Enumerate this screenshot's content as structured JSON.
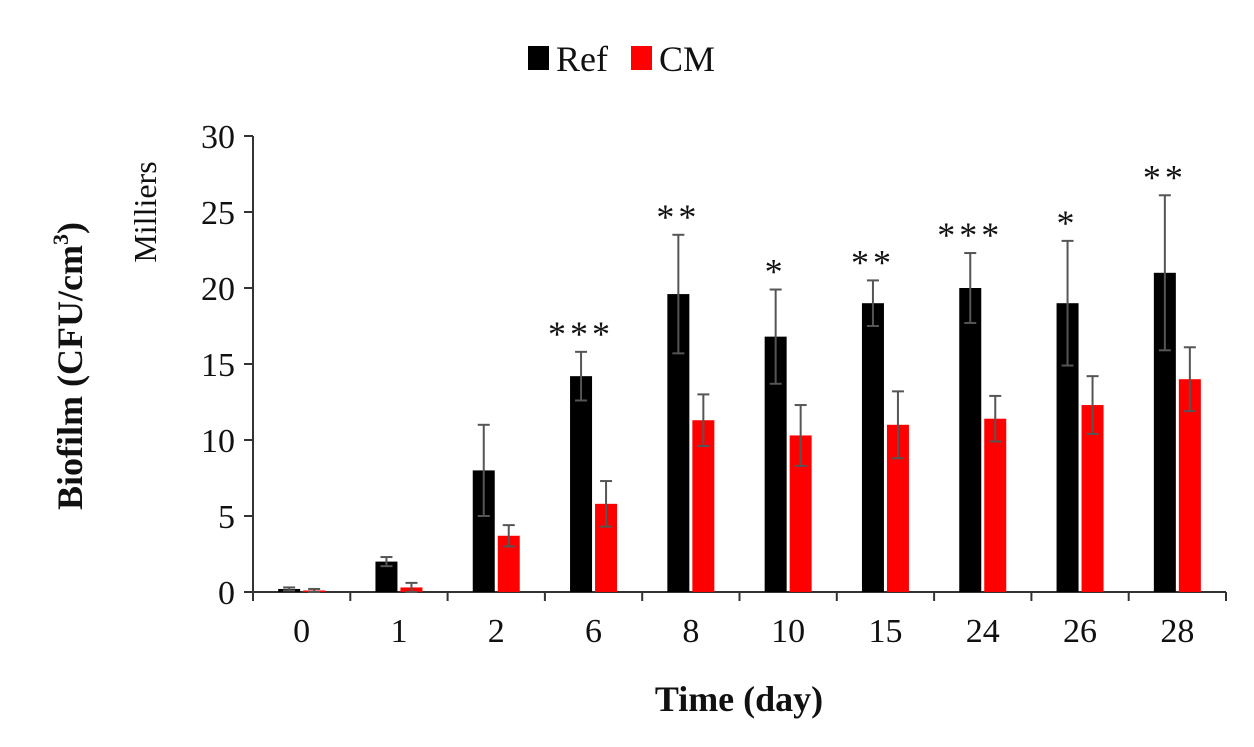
{
  "chart_data": {
    "type": "bar",
    "title": "",
    "xlabel": "Time (day)",
    "ylabel": "Biofilm (CFU/cm³)",
    "ylabel_main": "Biofilm (CFU/cm",
    "ylabel_sup": "3",
    "ylabel_close": ")",
    "yunit": "Milliers",
    "ylim": [
      0,
      30
    ],
    "yticks": [
      0,
      5,
      10,
      15,
      20,
      25,
      30
    ],
    "categories": [
      "0",
      "1",
      "2",
      "6",
      "8",
      "10",
      "15",
      "24",
      "26",
      "28"
    ],
    "legend_position": "top-center",
    "series": [
      {
        "name": "Ref",
        "color": "#000000",
        "values": [
          0.2,
          2.0,
          8.0,
          14.2,
          19.6,
          16.8,
          19.0,
          20.0,
          19.0,
          21.0
        ],
        "errors": [
          0.1,
          0.3,
          3.0,
          1.6,
          3.9,
          3.1,
          1.5,
          2.3,
          4.1,
          5.1
        ]
      },
      {
        "name": "CM",
        "color": "#ff0000",
        "values": [
          0.1,
          0.3,
          3.7,
          5.8,
          11.3,
          10.3,
          11.0,
          11.4,
          12.3,
          14.0
        ],
        "errors": [
          0.1,
          0.3,
          0.7,
          1.5,
          1.7,
          2.0,
          2.2,
          1.5,
          1.9,
          2.1
        ]
      }
    ],
    "annotations": [
      "",
      "",
      "",
      "***",
      "**",
      "*",
      "**",
      "***",
      "*",
      "**"
    ]
  }
}
